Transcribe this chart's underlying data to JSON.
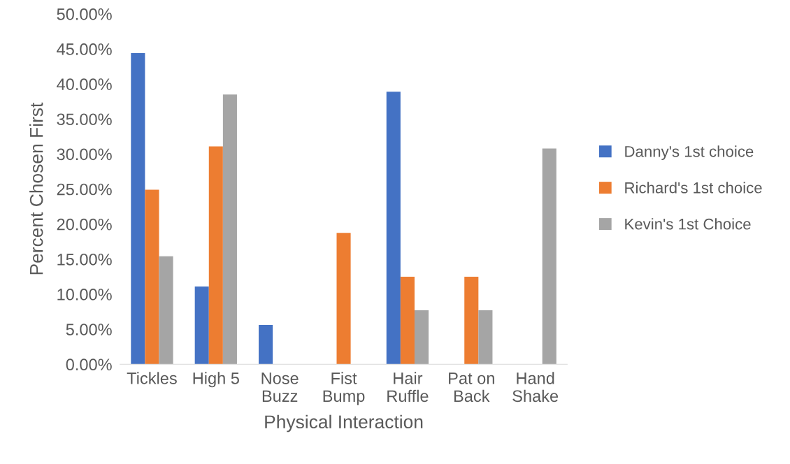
{
  "chart_data": {
    "type": "bar",
    "xlabel": "Physical Interaction",
    "ylabel": "Percent Chosen First",
    "categories": [
      "Tickles",
      "High 5",
      "Nose\nBuzz",
      "Fist\nBump",
      "Hair\nRuffle",
      "Pat on\nBack",
      "Hand\nShake"
    ],
    "series": [
      {
        "name": "Danny's 1st choice",
        "color": "#4472c4",
        "values": [
          44.4,
          11.1,
          5.6,
          null,
          38.9,
          null,
          null
        ]
      },
      {
        "name": "Richard's 1st choice",
        "color": "#ed7d31",
        "values": [
          24.9,
          31.1,
          null,
          18.75,
          12.5,
          12.5,
          null
        ]
      },
      {
        "name": "Kevin's 1st Choice",
        "color": "#a5a5a5",
        "values": [
          15.4,
          38.5,
          null,
          null,
          7.7,
          7.7,
          30.8
        ]
      }
    ],
    "ylim": [
      0,
      50
    ],
    "yticks": [
      {
        "value": 0,
        "label": "0.00%"
      },
      {
        "value": 5,
        "label": "5.00%"
      },
      {
        "value": 10,
        "label": "10.00%"
      },
      {
        "value": 15,
        "label": "15.00%"
      },
      {
        "value": 20,
        "label": "20.00%"
      },
      {
        "value": 25,
        "label": "25.00%"
      },
      {
        "value": 30,
        "label": "30.00%"
      },
      {
        "value": 35,
        "label": "35.00%"
      },
      {
        "value": 40,
        "label": "40.00%"
      },
      {
        "value": 45,
        "label": "45.00%"
      },
      {
        "value": 50,
        "label": "50.00%"
      }
    ],
    "grid": false,
    "legend": "right"
  }
}
